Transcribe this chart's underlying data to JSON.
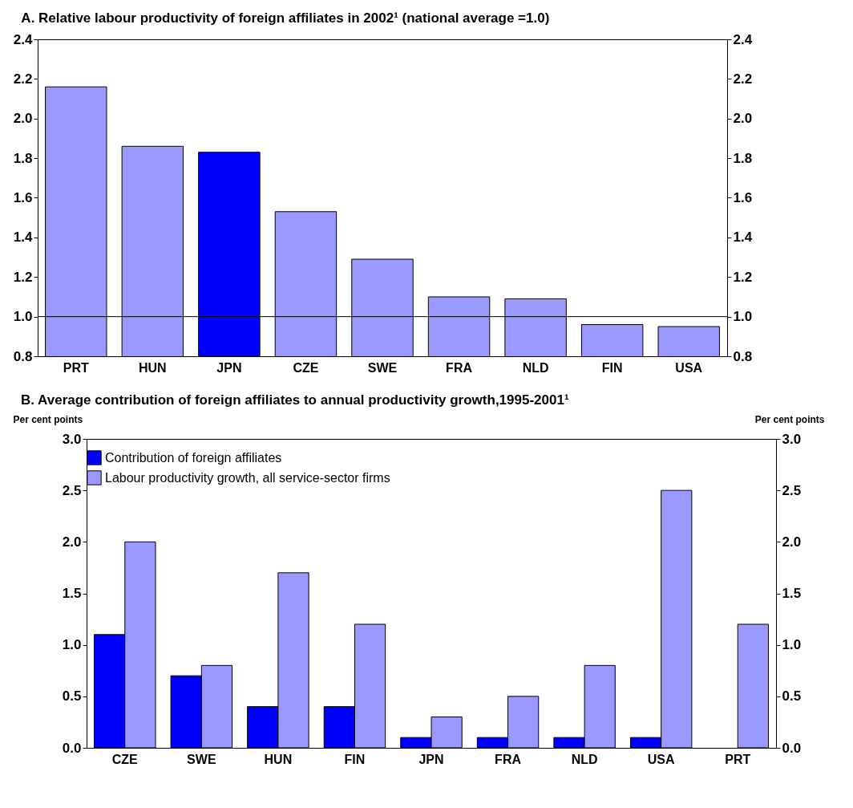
{
  "chart_data": [
    {
      "type": "bar",
      "title": "A. Relative labour productivity of foreign affiliates in 2002¹ (national average =1.0)",
      "categories": [
        "PRT",
        "HUN",
        "JPN",
        "CZE",
        "SWE",
        "FRA",
        "NLD",
        "FIN",
        "USA"
      ],
      "values": [
        2.16,
        1.86,
        1.83,
        1.53,
        1.29,
        1.1,
        1.09,
        0.96,
        0.95
      ],
      "colors": [
        "#9999ff",
        "#9999ff",
        "#0000ff",
        "#9999ff",
        "#9999ff",
        "#9999ff",
        "#9999ff",
        "#9999ff",
        "#9999ff"
      ],
      "ylim": [
        0.8,
        2.4
      ],
      "yticks": [
        {
          "value": 0.8,
          "label": "0.8"
        },
        {
          "value": 1.0,
          "label": "1.0"
        },
        {
          "value": 1.2,
          "label": "1.2"
        },
        {
          "value": 1.4,
          "label": "1.4"
        },
        {
          "value": 1.6,
          "label": "1.6"
        },
        {
          "value": 1.8,
          "label": "1.8"
        },
        {
          "value": 2.0,
          "label": "2.0"
        },
        {
          "value": 2.2,
          "label": "2.2"
        },
        {
          "value": 2.4,
          "label": "2.4"
        }
      ],
      "y2lim": [
        0.8,
        2.4
      ],
      "y2ticks": [
        {
          "value": 0.8,
          "label": "0.8"
        },
        {
          "value": 1.0,
          "label": "1.0"
        },
        {
          "value": 1.2,
          "label": "1.2"
        },
        {
          "value": 1.4,
          "label": "1.4"
        },
        {
          "value": 1.6,
          "label": "1.6"
        },
        {
          "value": 1.8,
          "label": "1.8"
        },
        {
          "value": 2.0,
          "label": "2.0"
        },
        {
          "value": 2.2,
          "label": "2.2"
        },
        {
          "value": 2.4,
          "label": "2.4"
        }
      ],
      "ref_lines": [
        {
          "axis": "y",
          "value": 1.0,
          "color": "#000000"
        }
      ]
    },
    {
      "type": "bar",
      "title": "B. Average contribution of foreign affiliates to annual productivity growth,1995-2001¹",
      "ylabel": "Per cent points",
      "y2label": "Per cent points",
      "categories": [
        "CZE",
        "SWE",
        "HUN",
        "FIN",
        "JPN",
        "FRA",
        "NLD",
        "USA",
        "PRT"
      ],
      "series": [
        {
          "name": "Contribution of foreign affiliates",
          "color": "#0000ff",
          "values": [
            1.1,
            0.7,
            0.4,
            0.4,
            0.1,
            0.1,
            0.1,
            0.1,
            0.0
          ]
        },
        {
          "name": "Labour productivity growth, all service-sector firms",
          "color": "#9999ff",
          "values": [
            2.0,
            0.8,
            1.7,
            1.2,
            0.3,
            0.5,
            0.8,
            2.5,
            1.2
          ]
        }
      ],
      "ylim": [
        0,
        3
      ],
      "yticks": [
        {
          "value": 0,
          "label": "0.0"
        },
        {
          "value": 0.5,
          "label": "0.5"
        },
        {
          "value": 1,
          "label": "1.0"
        },
        {
          "value": 1.5,
          "label": "1.5"
        },
        {
          "value": 2,
          "label": "2.0"
        },
        {
          "value": 2.5,
          "label": "2.5"
        },
        {
          "value": 3,
          "label": "3.0"
        }
      ],
      "y2lim": [
        0,
        3
      ],
      "y2ticks": [
        {
          "value": 0,
          "label": "0.0"
        },
        {
          "value": 0.5,
          "label": "0.5"
        },
        {
          "value": 1,
          "label": "1.0"
        },
        {
          "value": 1.5,
          "label": "1.5"
        },
        {
          "value": 2,
          "label": "2.0"
        },
        {
          "value": 2.5,
          "label": "2.5"
        },
        {
          "value": 3,
          "label": "3.0"
        }
      ],
      "legend": "top"
    }
  ]
}
